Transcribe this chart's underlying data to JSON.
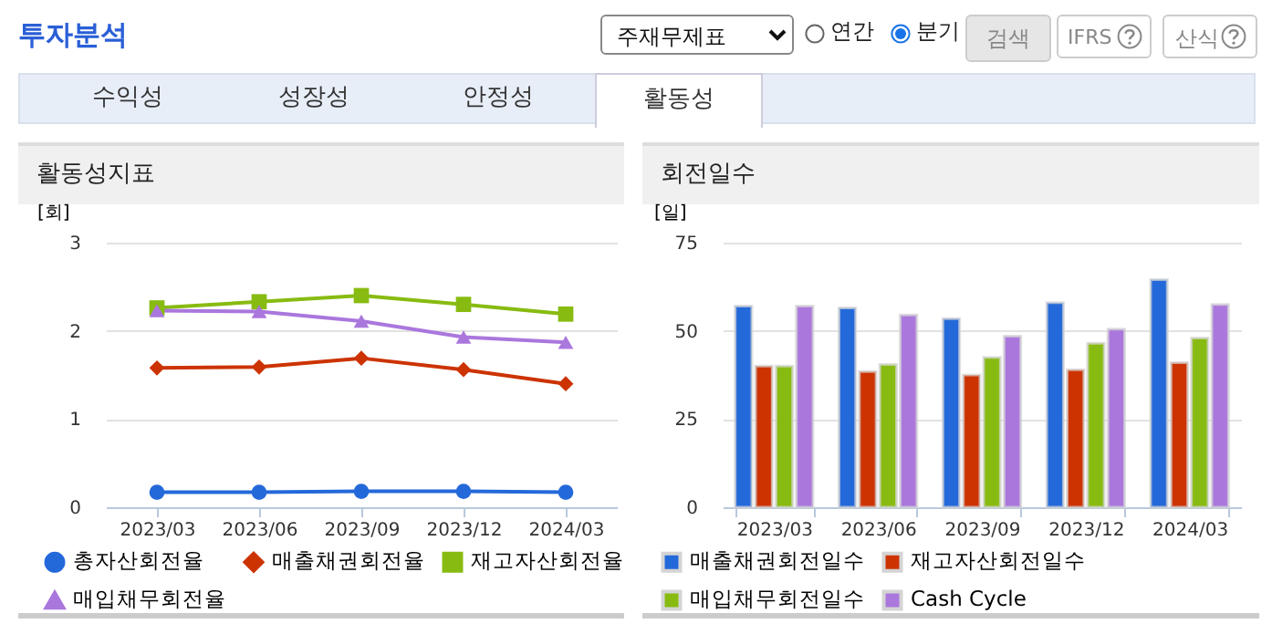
{
  "chart_data": [
    {
      "type": "other",
      "title": "투자분석",
      "annotations": [
        "주재무제표",
        "연간",
        "분기",
        "검색",
        "IFRS",
        "산식",
        "수익성",
        "성장성",
        "안정성",
        "활동성"
      ]
    },
    {
      "type": "line",
      "title": "활동성지표",
      "ylabel": "[회]",
      "categories": [
        "2023/03",
        "2023/06",
        "2023/09",
        "2023/12",
        "2024/03"
      ],
      "ylim": [
        0,
        3
      ],
      "yticks": [
        0,
        1,
        2,
        3
      ],
      "grid": "y",
      "legend": "bottom",
      "series": [
        {
          "name": "총자산회전율",
          "color": "#2469da",
          "marker": "circle",
          "values": [
            0.17,
            0.17,
            0.18,
            0.18,
            0.17
          ]
        },
        {
          "name": "매출채권회전율",
          "color": "#cc3300",
          "marker": "diamond",
          "values": [
            1.58,
            1.59,
            1.69,
            1.56,
            1.4
          ]
        },
        {
          "name": "재고자산회전율",
          "color": "#88bb11",
          "marker": "square",
          "values": [
            2.26,
            2.33,
            2.4,
            2.3,
            2.19
          ]
        },
        {
          "name": "매입채무회전율",
          "color": "#aa77dd",
          "marker": "triangle",
          "values": [
            2.23,
            2.22,
            2.11,
            1.93,
            1.87
          ]
        }
      ]
    },
    {
      "type": "bar",
      "title": "회전일수",
      "ylabel": "[일]",
      "categories": [
        "2023/03",
        "2023/06",
        "2023/09",
        "2023/12",
        "2024/03"
      ],
      "ylim": [
        0,
        75
      ],
      "yticks": [
        0,
        25,
        50,
        75
      ],
      "grid": "y",
      "legend": "bottom",
      "series": [
        {
          "name": "매출채권회전일수",
          "color": "#2469da",
          "values": [
            57,
            56.5,
            53.5,
            58,
            64.5
          ]
        },
        {
          "name": "재고자산회전일수",
          "color": "#cc3300",
          "values": [
            40,
            38.5,
            37.5,
            39,
            41
          ]
        },
        {
          "name": "매입채무회전일수",
          "color": "#88bb11",
          "values": [
            40,
            40.5,
            42.5,
            46.5,
            48
          ]
        },
        {
          "name": "Cash Cycle",
          "color": "#aa77dd",
          "values": [
            57,
            54.5,
            48.5,
            50.5,
            57.5
          ]
        }
      ]
    }
  ]
}
